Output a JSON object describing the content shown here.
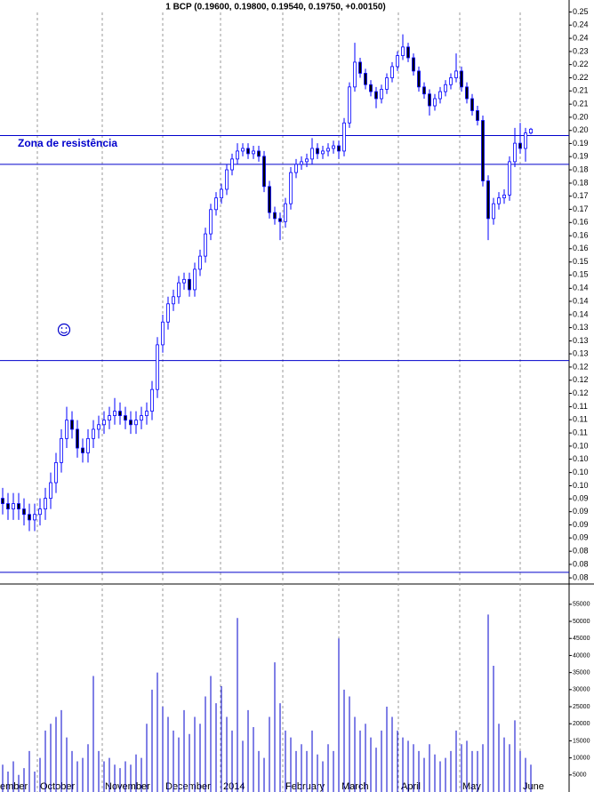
{
  "chart_data": {
    "type": "candlestick",
    "title": "1 BCP (0.19600, 0.19800, 0.19540, 0.19750, +0.00150)",
    "annotation": "Zona de resistência",
    "log_scale": true,
    "ylim": [
      0.0794,
      0.2561
    ],
    "yticks": [
      {
        "value": 0.25,
        "label": "0.25"
      },
      {
        "value": 0.2435,
        "label": "0.24"
      },
      {
        "value": 0.2371,
        "label": "0.24"
      },
      {
        "value": 0.2309,
        "label": "0.23"
      },
      {
        "value": 0.2249,
        "label": "0.22"
      },
      {
        "value": 0.219,
        "label": "0.22"
      },
      {
        "value": 0.2133,
        "label": "0.21"
      },
      {
        "value": 0.2077,
        "label": "0.21"
      },
      {
        "value": 0.2023,
        "label": "0.20"
      },
      {
        "value": 0.197,
        "label": "0.20"
      },
      {
        "value": 0.1919,
        "label": "0.19"
      },
      {
        "value": 0.1869,
        "label": "0.19"
      },
      {
        "value": 0.182,
        "label": "0.18"
      },
      {
        "value": 0.1772,
        "label": "0.18"
      },
      {
        "value": 0.1726,
        "label": "0.17"
      },
      {
        "value": 0.1681,
        "label": "0.17"
      },
      {
        "value": 0.1637,
        "label": "0.16"
      },
      {
        "value": 0.1594,
        "label": "0.16"
      },
      {
        "value": 0.1553,
        "label": "0.16"
      },
      {
        "value": 0.1512,
        "label": "0.15"
      },
      {
        "value": 0.1473,
        "label": "0.15"
      },
      {
        "value": 0.1434,
        "label": "0.14"
      },
      {
        "value": 0.1397,
        "label": "0.14"
      },
      {
        "value": 0.136,
        "label": "0.14"
      },
      {
        "value": 0.1325,
        "label": "0.13"
      },
      {
        "value": 0.129,
        "label": "0.13"
      },
      {
        "value": 0.1257,
        "label": "0.13"
      },
      {
        "value": 0.1224,
        "label": "0.12"
      },
      {
        "value": 0.1192,
        "label": "0.12"
      },
      {
        "value": 0.1161,
        "label": "0.12"
      },
      {
        "value": 0.113,
        "label": "0.11"
      },
      {
        "value": 0.1101,
        "label": "0.11"
      },
      {
        "value": 0.1072,
        "label": "0.11"
      },
      {
        "value": 0.1044,
        "label": "0.10"
      },
      {
        "value": 0.1017,
        "label": "0.10"
      },
      {
        "value": 0.099,
        "label": "0.10"
      },
      {
        "value": 0.0964,
        "label": "0.10"
      },
      {
        "value": 0.0939,
        "label": "0.09"
      },
      {
        "value": 0.0915,
        "label": "0.09"
      },
      {
        "value": 0.0891,
        "label": "0.09"
      },
      {
        "value": 0.0868,
        "label": "0.09"
      },
      {
        "value": 0.0845,
        "label": "0.08"
      },
      {
        "value": 0.0823,
        "label": "0.08"
      },
      {
        "value": 0.0801,
        "label": "0.08"
      }
    ],
    "hlines": [
      0.195,
      0.184,
      0.124,
      0.081
    ],
    "hline_color": "#0000cc",
    "up_color": "#ffffff",
    "down_color": "#000000",
    "edge_color": "#0000ff",
    "x_labels": [
      "ember",
      "October",
      "November",
      "December",
      "2014",
      "February",
      "March",
      "April",
      "May",
      "June"
    ],
    "open": [
      0.094,
      0.093,
      0.092,
      0.093,
      0.092,
      0.091,
      0.09,
      0.091,
      0.092,
      0.094,
      0.097,
      0.101,
      0.106,
      0.11,
      0.108,
      0.104,
      0.103,
      0.106,
      0.108,
      0.109,
      0.11,
      0.111,
      0.112,
      0.111,
      0.11,
      0.109,
      0.11,
      0.111,
      0.112,
      0.117,
      0.128,
      0.134,
      0.139,
      0.141,
      0.145,
      0.146,
      0.143,
      0.149,
      0.153,
      0.16,
      0.168,
      0.172,
      0.175,
      0.182,
      0.186,
      0.189,
      0.19,
      0.188,
      0.189,
      0.187,
      0.176,
      0.167,
      0.165,
      0.164,
      0.17,
      0.181,
      0.184,
      0.185,
      0.186,
      0.19,
      0.188,
      0.189,
      0.19,
      0.191,
      0.189,
      0.2,
      0.215,
      0.226,
      0.221,
      0.216,
      0.213,
      0.21,
      0.214,
      0.219,
      0.224,
      0.229,
      0.233,
      0.228,
      0.222,
      0.215,
      0.212,
      0.207,
      0.21,
      0.213,
      0.216,
      0.219,
      0.222,
      0.215,
      0.21,
      0.205,
      0.201,
      0.178,
      0.165,
      0.17,
      0.172,
      0.173,
      0.185,
      0.192,
      0.19,
      0.196
    ],
    "high": [
      0.096,
      0.095,
      0.095,
      0.095,
      0.094,
      0.093,
      0.093,
      0.094,
      0.096,
      0.099,
      0.103,
      0.108,
      0.113,
      0.112,
      0.11,
      0.106,
      0.108,
      0.11,
      0.111,
      0.112,
      0.113,
      0.115,
      0.114,
      0.113,
      0.112,
      0.112,
      0.113,
      0.114,
      0.119,
      0.13,
      0.136,
      0.141,
      0.143,
      0.147,
      0.148,
      0.148,
      0.151,
      0.155,
      0.162,
      0.17,
      0.174,
      0.177,
      0.184,
      0.188,
      0.192,
      0.192,
      0.192,
      0.191,
      0.191,
      0.189,
      0.178,
      0.169,
      0.167,
      0.172,
      0.183,
      0.186,
      0.187,
      0.188,
      0.194,
      0.192,
      0.191,
      0.192,
      0.193,
      0.193,
      0.202,
      0.217,
      0.235,
      0.228,
      0.223,
      0.218,
      0.215,
      0.216,
      0.221,
      0.226,
      0.231,
      0.239,
      0.235,
      0.23,
      0.224,
      0.217,
      0.214,
      0.212,
      0.215,
      0.218,
      0.221,
      0.23,
      0.224,
      0.217,
      0.212,
      0.207,
      0.203,
      0.18,
      0.172,
      0.174,
      0.175,
      0.187,
      0.198,
      0.2,
      0.198,
      0.198
    ],
    "low": [
      0.091,
      0.09,
      0.09,
      0.09,
      0.089,
      0.088,
      0.088,
      0.089,
      0.09,
      0.092,
      0.095,
      0.099,
      0.104,
      0.106,
      0.102,
      0.101,
      0.101,
      0.104,
      0.106,
      0.107,
      0.108,
      0.109,
      0.109,
      0.108,
      0.107,
      0.107,
      0.108,
      0.109,
      0.11,
      0.115,
      0.126,
      0.132,
      0.137,
      0.139,
      0.143,
      0.141,
      0.141,
      0.147,
      0.151,
      0.158,
      0.166,
      0.17,
      0.173,
      0.18,
      0.184,
      0.187,
      0.186,
      0.186,
      0.185,
      0.174,
      0.165,
      0.163,
      0.158,
      0.162,
      0.168,
      0.179,
      0.182,
      0.183,
      0.184,
      0.186,
      0.186,
      0.187,
      0.188,
      0.186,
      0.187,
      0.198,
      0.213,
      0.219,
      0.214,
      0.211,
      0.206,
      0.208,
      0.212,
      0.217,
      0.222,
      0.227,
      0.226,
      0.22,
      0.213,
      0.21,
      0.203,
      0.205,
      0.208,
      0.211,
      0.214,
      0.217,
      0.213,
      0.208,
      0.203,
      0.199,
      0.176,
      0.158,
      0.163,
      0.168,
      0.17,
      0.171,
      0.183,
      0.188,
      0.185,
      0.1954
    ],
    "close": [
      0.093,
      0.092,
      0.093,
      0.092,
      0.091,
      0.09,
      0.091,
      0.092,
      0.094,
      0.097,
      0.101,
      0.106,
      0.11,
      0.108,
      0.104,
      0.103,
      0.106,
      0.108,
      0.109,
      0.11,
      0.111,
      0.112,
      0.111,
      0.11,
      0.109,
      0.11,
      0.111,
      0.112,
      0.117,
      0.128,
      0.134,
      0.139,
      0.141,
      0.145,
      0.146,
      0.143,
      0.149,
      0.153,
      0.16,
      0.168,
      0.172,
      0.175,
      0.182,
      0.186,
      0.189,
      0.19,
      0.188,
      0.189,
      0.187,
      0.176,
      0.167,
      0.165,
      0.164,
      0.17,
      0.181,
      0.184,
      0.185,
      0.186,
      0.19,
      0.188,
      0.189,
      0.19,
      0.191,
      0.189,
      0.2,
      0.215,
      0.226,
      0.221,
      0.216,
      0.213,
      0.21,
      0.214,
      0.219,
      0.224,
      0.229,
      0.233,
      0.228,
      0.222,
      0.215,
      0.212,
      0.207,
      0.21,
      0.213,
      0.216,
      0.219,
      0.222,
      0.215,
      0.21,
      0.205,
      0.201,
      0.178,
      0.165,
      0.17,
      0.172,
      0.173,
      0.185,
      0.192,
      0.19,
      0.196,
      0.1975
    ],
    "volume": [
      8000,
      6000,
      9000,
      5000,
      7000,
      12000,
      6000,
      10000,
      18000,
      20000,
      22000,
      24000,
      16000,
      12000,
      9000,
      10000,
      14000,
      34000,
      12000,
      9000,
      10000,
      8000,
      7000,
      9000,
      8000,
      11000,
      10000,
      20000,
      30000,
      35000,
      25000,
      22000,
      18000,
      16000,
      24000,
      17000,
      22000,
      20000,
      28000,
      34000,
      26000,
      31000,
      22000,
      18000,
      51000,
      15000,
      24000,
      19000,
      12000,
      10000,
      22000,
      38000,
      26000,
      18000,
      16000,
      12000,
      14000,
      12000,
      18000,
      11000,
      9000,
      14000,
      12000,
      45000,
      30000,
      28000,
      22000,
      18000,
      20000,
      16000,
      13000,
      18000,
      25000,
      22000,
      18000,
      16000,
      15000,
      14000,
      12000,
      10000,
      14000,
      11000,
      9000,
      10000,
      12000,
      18000,
      14000,
      15000,
      12000,
      12000,
      14000,
      52000,
      37000,
      20000,
      16000,
      14000,
      21000,
      12000,
      10000,
      8000
    ],
    "volume_color": "#0000cc",
    "volume_ylim": [
      0,
      56000
    ],
    "volume_yticks": [
      5000,
      10000,
      15000,
      20000,
      25000,
      30000,
      35000,
      40000,
      45000,
      50000,
      55000
    ]
  }
}
